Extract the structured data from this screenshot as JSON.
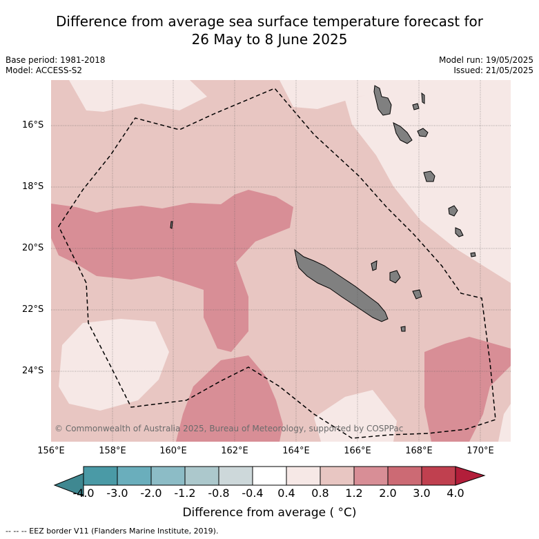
{
  "title_line1": "Difference from average sea surface temperature forecast for",
  "title_line2": "26 May to 8 June 2025",
  "base_period": "Base period: 1981-2018",
  "model": "Model: ACCESS-S2",
  "model_run": "Model run: 19/05/2025",
  "issued": "Issued: 21/05/2025",
  "lat_ticks": [
    "16°S",
    "18°S",
    "20°S",
    "22°S",
    "24°S"
  ],
  "lon_ticks": [
    "156°E",
    "158°E",
    "160°E",
    "162°E",
    "164°E",
    "166°E",
    "168°E",
    "170°E"
  ],
  "copyright": "© Commonwealth of Australia 2025, Bureau of Meteorology, supported by COSPPac",
  "colorbar": {
    "labels": [
      "-4.0",
      "-3.0",
      "-2.0",
      "-1.2",
      "-0.8",
      "-0.4",
      "0.4",
      "0.8",
      "1.2",
      "2.0",
      "3.0",
      "4.0"
    ],
    "colors": [
      "#4a9aa6",
      "#6aaebc",
      "#8cbcc6",
      "#acc8cc",
      "#cdd8da",
      "#ffffff",
      "#f6e8e6",
      "#e8c6c2",
      "#d88e96",
      "#cc6a74",
      "#c0404f"
    ],
    "under_color": "#3f8891",
    "over_color": "#b21e3a",
    "title": "Difference from average ( °C)"
  },
  "colors": {
    "land": "#808080",
    "anom_0_4_0_8": "#f6e8e6",
    "anom_0_8_1_2": "#e8c6c2",
    "anom_1_2_2_0": "#d88e96"
  },
  "eez_note": "--  --  -- EEZ border V11 (Flanders Marine Institute, 2019)."
}
